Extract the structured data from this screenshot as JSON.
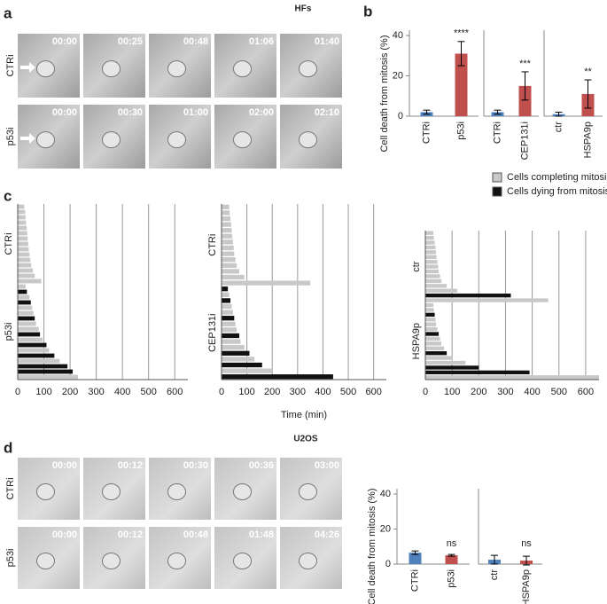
{
  "panel_labels": [
    "a",
    "b",
    "c",
    "d"
  ],
  "section_titles": [
    "HFs",
    "U2OS"
  ],
  "panel_a": {
    "rows": [
      {
        "label": "CTRi",
        "times": [
          "00:00",
          "00:25",
          "00:48",
          "01:06",
          "01:40"
        ]
      },
      {
        "label": "p53i",
        "times": [
          "00:00",
          "00:30",
          "01:00",
          "02:00",
          "02:10"
        ]
      }
    ]
  },
  "panel_d": {
    "rows": [
      {
        "label": "CTRi",
        "times": [
          "00:00",
          "00:12",
          "00:30",
          "00:36",
          "03:00"
        ]
      },
      {
        "label": "p53i",
        "times": [
          "00:00",
          "00:12",
          "00:48",
          "01:48",
          "04:26"
        ]
      }
    ]
  },
  "chart_data": [
    {
      "type": "bar",
      "ylabel": "Cell death from mitosis (%)",
      "ylim": [
        0,
        40
      ],
      "yticks": [
        0,
        20,
        40
      ],
      "categories": [
        "CTRi",
        "p53i"
      ],
      "values": [
        2,
        31
      ],
      "errors": [
        1,
        6
      ],
      "colors": [
        "#4f81bd",
        "#c0504d"
      ],
      "annotations": [
        null,
        "****"
      ]
    },
    {
      "type": "bar",
      "ylim": [
        0,
        40
      ],
      "categories": [
        "CTRi",
        "CEP131i"
      ],
      "values": [
        2,
        15
      ],
      "errors": [
        1,
        7
      ],
      "colors": [
        "#4f81bd",
        "#c0504d"
      ],
      "annotations": [
        null,
        "***"
      ]
    },
    {
      "type": "bar",
      "ylim": [
        0,
        40
      ],
      "categories": [
        "ctr",
        "HSPA9p"
      ],
      "values": [
        1,
        11
      ],
      "errors": [
        1,
        7
      ],
      "colors": [
        "#4f81bd",
        "#c0504d"
      ],
      "annotations": [
        null,
        "**"
      ]
    },
    {
      "type": "timeline",
      "xlim": [
        0,
        650
      ],
      "xticks": [
        0,
        100,
        200,
        300,
        400,
        500,
        600
      ],
      "categories": [
        "CTRi",
        "p53i"
      ],
      "series": [
        {
          "color": "#c8c8c8",
          "values": [
            [
              25,
              28,
              30,
              32,
              34,
              36,
              38,
              40,
              42,
              45,
              48,
              52,
              58,
              65,
              90
            ],
            [
              30,
              null,
              45,
              null,
              55,
              60,
              null,
              70,
              80,
              null,
              95,
              null,
              120,
              null,
              160,
              null,
              null,
              230
            ]
          ]
        },
        {
          "color": "#111111",
          "values": [
            [
              null,
              null,
              null,
              null,
              null,
              null,
              null,
              null,
              null,
              null,
              null,
              null,
              null,
              null,
              null
            ],
            [
              null,
              35,
              null,
              50,
              null,
              null,
              65,
              null,
              null,
              85,
              null,
              110,
              null,
              140,
              null,
              190,
              210,
              null
            ]
          ]
        }
      ]
    },
    {
      "type": "timeline",
      "xlabel": "Time (min)",
      "xlim": [
        0,
        650
      ],
      "xticks": [
        0,
        100,
        200,
        300,
        400,
        500,
        600
      ],
      "categories": [
        "CTRi",
        "CEP131i"
      ],
      "series": [
        {
          "color": "#c8c8c8",
          "values": [
            [
              30,
              32,
              35,
              38,
              40,
              42,
              45,
              48,
              50,
              55,
              60,
              70,
              90,
              350
            ],
            [
              null,
              30,
              null,
              40,
              45,
              null,
              55,
              60,
              null,
              75,
              90,
              null,
              130,
              null,
              200,
              null
            ]
          ]
        },
        {
          "color": "#111111",
          "values": [
            [
              null,
              null,
              null,
              null,
              null,
              null,
              null,
              null,
              null,
              null,
              null,
              null,
              null,
              null
            ],
            [
              25,
              null,
              35,
              null,
              null,
              50,
              null,
              null,
              70,
              null,
              null,
              110,
              null,
              160,
              null,
              440
            ]
          ]
        }
      ]
    },
    {
      "type": "timeline",
      "xlim": [
        0,
        650
      ],
      "xticks": [
        0,
        100,
        200,
        300,
        400,
        500,
        600
      ],
      "categories": [
        "ctr",
        "HSPA9p"
      ],
      "series": [
        {
          "name": "Cells completing mitosis",
          "color": "#c8c8c8",
          "values": [
            [
              30,
              32,
              35,
              38,
              40,
              42,
              45,
              48,
              50,
              55,
              60,
              80,
              120,
              null,
              460
            ],
            [
              30,
              32,
              null,
              38,
              40,
              45,
              null,
              55,
              60,
              70,
              null,
              100,
              150,
              null,
              null,
              650
            ]
          ]
        },
        {
          "name": "Cells dying from mitosis",
          "color": "#111111",
          "values": [
            [
              null,
              null,
              null,
              null,
              null,
              null,
              null,
              null,
              null,
              null,
              null,
              null,
              null,
              320,
              null
            ],
            [
              null,
              null,
              35,
              null,
              null,
              null,
              50,
              null,
              null,
              null,
              80,
              null,
              null,
              200,
              390,
              null
            ]
          ]
        }
      ]
    },
    {
      "type": "bar",
      "ylabel": "Cell death from mitosis (%)",
      "ylim": [
        0,
        40
      ],
      "yticks": [
        0,
        20,
        40
      ],
      "categories": [
        "CTRi",
        "p53i"
      ],
      "values": [
        6.5,
        5
      ],
      "errors": [
        1,
        0.5
      ],
      "colors": [
        "#4f81bd",
        "#c0504d"
      ],
      "annotations": [
        null,
        "ns"
      ]
    },
    {
      "type": "bar",
      "ylim": [
        0,
        40
      ],
      "categories": [
        "ctr",
        "HSPA9p"
      ],
      "values": [
        2.5,
        2
      ],
      "errors": [
        2.5,
        2.5
      ],
      "colors": [
        "#4f81bd",
        "#c0504d"
      ],
      "annotations": [
        null,
        "ns"
      ]
    }
  ]
}
